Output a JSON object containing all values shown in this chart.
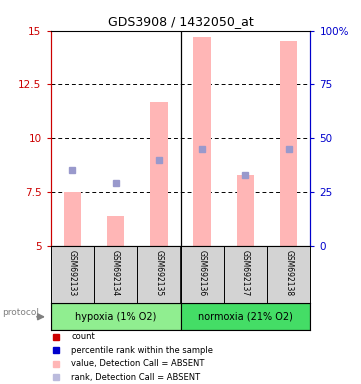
{
  "title": "GDS3908 / 1432050_at",
  "samples": [
    "GSM692133",
    "GSM692134",
    "GSM692135",
    "GSM692136",
    "GSM692137",
    "GSM692138"
  ],
  "pink_bar_top": [
    7.5,
    6.4,
    11.7,
    14.7,
    8.3,
    14.5
  ],
  "pink_bar_bottom": 5.0,
  "blue_sq_left_y": [
    8.5,
    7.9,
    9.0,
    9.5,
    8.3,
    9.5
  ],
  "left_ylim": [
    5,
    15
  ],
  "right_ylim": [
    0,
    100
  ],
  "left_yticks": [
    5,
    7.5,
    10,
    12.5,
    15
  ],
  "left_yticklabels": [
    "5",
    "7.5",
    "10",
    "12.5",
    "15"
  ],
  "right_yticks": [
    0,
    25,
    50,
    75,
    100
  ],
  "right_yticklabels": [
    "0",
    "25",
    "50",
    "75",
    "100%"
  ],
  "groups": [
    {
      "label": "hypoxia (1% O2)",
      "indices": [
        0,
        1,
        2
      ],
      "color": "#90EE90"
    },
    {
      "label": "normoxia (21% O2)",
      "indices": [
        3,
        4,
        5
      ],
      "color": "#44DD66"
    }
  ],
  "protocol_label": "protocol",
  "bar_width": 0.4,
  "pink_color": "#FFB6B6",
  "blue_color": "#9999CC",
  "left_axis_color": "#CC0000",
  "right_axis_color": "#0000CC",
  "bg_color": "#FFFFFF",
  "label_area_color": "#D3D3D3",
  "legend_items": [
    {
      "color": "#CC0000",
      "label": "count"
    },
    {
      "color": "#0000CC",
      "label": "percentile rank within the sample"
    },
    {
      "color": "#FFB6B6",
      "label": "value, Detection Call = ABSENT"
    },
    {
      "color": "#BBBBDD",
      "label": "rank, Detection Call = ABSENT"
    }
  ]
}
